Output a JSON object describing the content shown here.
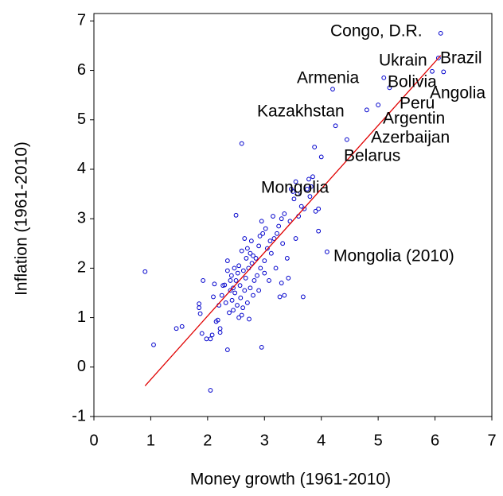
{
  "chart_data": {
    "type": "scatter",
    "x_label": "Money growth (1961-2010)",
    "y_label": "Inflation (1961-2010)",
    "x": [
      0.9,
      1.05,
      1.45,
      1.55,
      1.85,
      1.85,
      1.87,
      1.9,
      1.92,
      1.98,
      2.05,
      2.05,
      2.08,
      2.1,
      2.12,
      2.15,
      2.18,
      2.2,
      2.22,
      2.22,
      2.25,
      2.27,
      2.3,
      2.32,
      2.35,
      2.35,
      2.35,
      2.38,
      2.4,
      2.4,
      2.42,
      2.43,
      2.45,
      2.45,
      2.47,
      2.48,
      2.5,
      2.5,
      2.52,
      2.53,
      2.55,
      2.55,
      2.57,
      2.58,
      2.6,
      2.6,
      2.6,
      2.62,
      2.63,
      2.65,
      2.65,
      2.67,
      2.68,
      2.7,
      2.7,
      2.72,
      2.73,
      2.75,
      2.75,
      2.77,
      2.78,
      2.8,
      2.8,
      2.82,
      2.85,
      2.87,
      2.9,
      2.9,
      2.92,
      2.93,
      2.95,
      2.95,
      2.97,
      3.0,
      3.0,
      3.02,
      3.05,
      3.08,
      3.1,
      3.12,
      3.15,
      3.17,
      3.2,
      3.22,
      3.25,
      3.27,
      3.3,
      3.3,
      3.32,
      3.35,
      3.35,
      3.4,
      3.42,
      3.45,
      3.47,
      3.5,
      3.52,
      3.55,
      3.55,
      3.58,
      3.6,
      3.65,
      3.68,
      3.7,
      3.75,
      3.78,
      3.8,
      3.82,
      3.85,
      3.88,
      3.9,
      3.95,
      3.95,
      4.0,
      4.1,
      4.2,
      4.25,
      4.45,
      4.8,
      5.0,
      5.1,
      5.2,
      5.95,
      6.06,
      6.1,
      6.15
    ],
    "values": [
      1.93,
      0.45,
      0.78,
      0.82,
      1.28,
      1.2,
      1.08,
      0.68,
      1.75,
      0.57,
      0.57,
      -0.47,
      0.65,
      1.42,
      1.68,
      0.92,
      0.95,
      1.25,
      0.78,
      0.7,
      1.45,
      1.65,
      1.66,
      1.3,
      2.15,
      1.95,
      0.35,
      1.1,
      1.55,
      1.75,
      1.85,
      1.35,
      1.6,
      1.15,
      2.0,
      1.5,
      1.75,
      3.07,
      1.25,
      1.9,
      2.05,
      1.0,
      1.65,
      1.4,
      4.52,
      2.35,
      1.05,
      1.2,
      1.95,
      1.55,
      2.6,
      1.8,
      2.2,
      1.3,
      2.4,
      2.0,
      0.97,
      1.6,
      2.3,
      2.55,
      2.1,
      1.45,
      2.25,
      1.75,
      2.2,
      1.85,
      2.45,
      1.55,
      2.65,
      2.0,
      0.4,
      2.95,
      2.7,
      2.15,
      1.9,
      2.8,
      2.4,
      1.75,
      2.55,
      2.3,
      3.05,
      2.6,
      2.0,
      2.7,
      2.85,
      1.42,
      1.7,
      3.0,
      2.5,
      1.45,
      3.1,
      2.2,
      1.8,
      2.95,
      3.6,
      3.55,
      3.4,
      2.6,
      3.75,
      3.5,
      3.05,
      3.25,
      1.42,
      3.2,
      3.6,
      3.8,
      3.45,
      3.65,
      3.85,
      4.45,
      3.15,
      2.75,
      3.2,
      4.25,
      2.33,
      5.62,
      4.88,
      4.6,
      5.2,
      5.3,
      5.85,
      5.65,
      5.98,
      6.25,
      6.75,
      5.97
    ],
    "color": "#0000cc",
    "fit_line": {
      "x": [
        0.9,
        6.1
      ],
      "values": [
        -0.38,
        6.3
      ],
      "color": "#e00000"
    },
    "annotations": [
      "Congo, D.R.",
      "Ukrain",
      "Brazil",
      "Armenia",
      "Bolivia",
      "Angolia",
      "Peru",
      "Kazakhstan",
      "Argentin",
      "Azerbaijan",
      "Belarus",
      "Mongolia",
      "Mongolia (2010)"
    ],
    "xlim": [
      0,
      7
    ],
    "ylim": [
      -1,
      7.15
    ],
    "xticks": [
      0,
      1,
      2,
      3,
      4,
      5,
      6,
      7
    ],
    "yticks": [
      -1,
      0,
      1,
      2,
      3,
      4,
      5,
      6,
      7
    ]
  }
}
